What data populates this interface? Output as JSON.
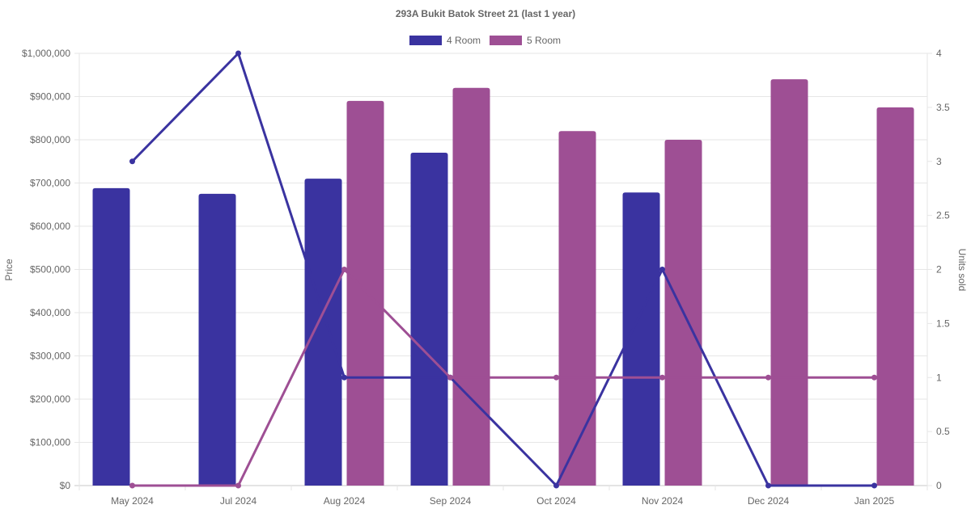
{
  "chart_data": {
    "type": "bar",
    "title": "293A Bukit Batok Street 21 (last 1 year)",
    "categories": [
      "May 2024",
      "Jul 2024",
      "Aug 2024",
      "Sep 2024",
      "Oct 2024",
      "Nov 2024",
      "Dec 2024",
      "Jan 2025"
    ],
    "ylabel": "Price",
    "y2label": "Units sold",
    "ylim": [
      0,
      1000000
    ],
    "y2lim": [
      0,
      4
    ],
    "yticks": [
      "$0",
      "$100,000",
      "$200,000",
      "$300,000",
      "$400,000",
      "$500,000",
      "$600,000",
      "$700,000",
      "$800,000",
      "$900,000",
      "$1,000,000"
    ],
    "y2ticks": [
      "0",
      "0.5",
      "1",
      "1.5",
      "2",
      "2.5",
      "3",
      "3.5",
      "4"
    ],
    "grid": true,
    "legend_position": "top",
    "series": [
      {
        "name": "4 Room",
        "color": "#3a33a0",
        "values": [
          688000,
          675000,
          710000,
          770000,
          null,
          678000,
          null,
          null
        ],
        "units_sold": [
          3,
          4,
          1,
          1,
          0,
          2,
          0,
          0
        ]
      },
      {
        "name": "5 Room",
        "color": "#9e4f94",
        "values": [
          null,
          null,
          890000,
          920000,
          820000,
          800000,
          940000,
          875000
        ],
        "units_sold": [
          0,
          0,
          2,
          1,
          1,
          1,
          1,
          1
        ]
      }
    ]
  }
}
